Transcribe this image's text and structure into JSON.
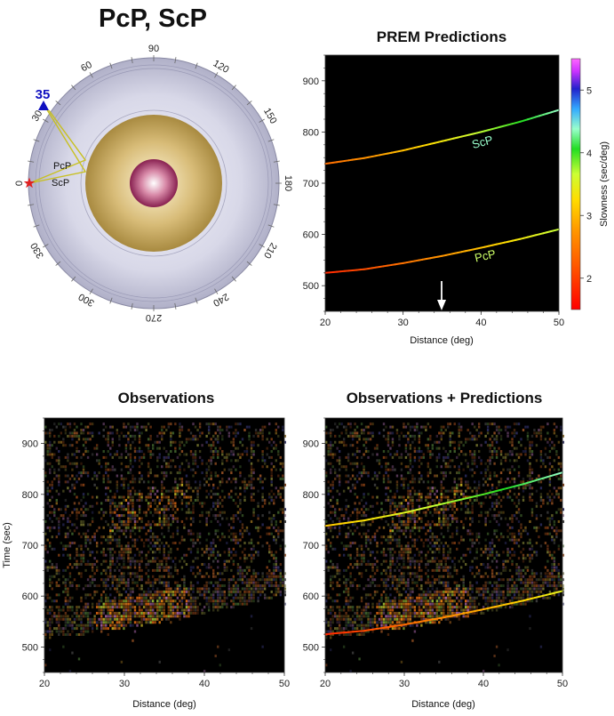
{
  "page_title": "PcP, ScP",
  "earth_diagram": {
    "angle_labels": [
      "90",
      "60",
      "120",
      "30",
      "150",
      "0",
      "180",
      "330",
      "210",
      "300",
      "240",
      "270"
    ],
    "station_label": "35",
    "phase_labels": [
      "PcP",
      "ScP"
    ],
    "colors": {
      "mantle": "#cdcde0",
      "outer_core": "#c8a85a",
      "inner_core": "#a03060",
      "ray": "#c8c020",
      "station": "#1010c0",
      "source": "#e02020"
    }
  },
  "chart_data": [
    {
      "type": "line",
      "title": "PREM Predictions",
      "xlabel": "Distance (deg)",
      "ylabel": "",
      "xlim": [
        20,
        50
      ],
      "ylim": [
        450,
        950
      ],
      "x_ticks": [
        20,
        30,
        40,
        50
      ],
      "y_ticks": [
        500,
        600,
        700,
        800,
        900
      ],
      "series": [
        {
          "name": "ScP",
          "x": [
            20,
            25,
            30,
            35,
            40,
            45,
            50
          ],
          "values": [
            738,
            749,
            764,
            782,
            800,
            820,
            843
          ]
        },
        {
          "name": "PcP",
          "x": [
            20,
            25,
            30,
            35,
            40,
            45,
            50
          ],
          "values": [
            525,
            532,
            544,
            558,
            574,
            591,
            610
          ]
        }
      ],
      "marker_x": 35,
      "colorbar": {
        "label": "Slowness (sec/deg)",
        "ticks": [
          2,
          3,
          4,
          5
        ],
        "range": [
          1.5,
          5.5
        ]
      }
    },
    {
      "type": "heatmap",
      "title": "Observations",
      "xlabel": "Distance (deg)",
      "ylabel": "Time (sec)",
      "xlim": [
        20,
        50
      ],
      "ylim": [
        450,
        950
      ],
      "x_ticks": [
        20,
        30,
        40,
        50
      ],
      "y_ticks": [
        500,
        600,
        700,
        800,
        900
      ]
    },
    {
      "type": "heatmap",
      "title": "Observations + Predictions",
      "xlabel": "Distance (deg)",
      "ylabel": "",
      "xlim": [
        20,
        50
      ],
      "ylim": [
        450,
        950
      ],
      "x_ticks": [
        20,
        30,
        40,
        50
      ],
      "y_ticks": [
        500,
        600,
        700,
        800,
        900
      ],
      "overlay_series": [
        {
          "x": [
            20,
            25,
            30,
            35,
            40,
            45,
            50
          ],
          "values": [
            738,
            749,
            764,
            782,
            800,
            820,
            843
          ]
        },
        {
          "x": [
            20,
            25,
            30,
            35,
            40,
            45,
            50
          ],
          "values": [
            525,
            532,
            544,
            558,
            574,
            591,
            610
          ]
        }
      ]
    }
  ]
}
